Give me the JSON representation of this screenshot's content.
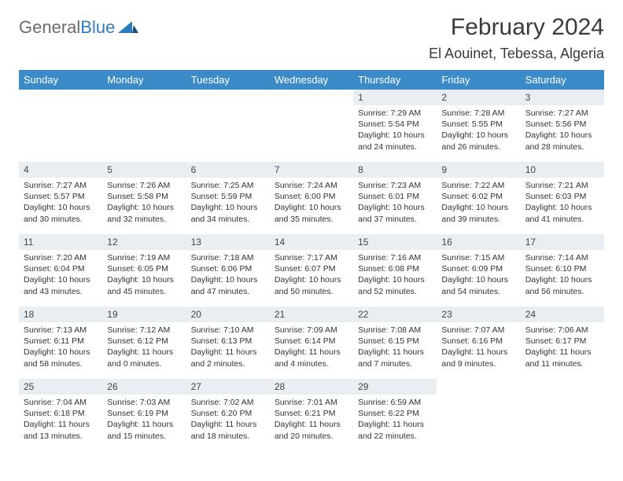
{
  "logo": {
    "general": "General",
    "blue": "Blue"
  },
  "title": "February 2024",
  "location": "El Aouinet, Tebessa, Algeria",
  "colors": {
    "header_bg": "#3b8bc8",
    "header_text": "#ffffff",
    "daybar_bg": "#e9eef2",
    "text": "#333333",
    "logo_gray": "#6b6b6b",
    "logo_blue": "#2f7bbf"
  },
  "days_of_week": [
    "Sunday",
    "Monday",
    "Tuesday",
    "Wednesday",
    "Thursday",
    "Friday",
    "Saturday"
  ],
  "weeks": [
    [
      null,
      null,
      null,
      null,
      {
        "n": "1",
        "sr": "Sunrise: 7:29 AM",
        "ss": "Sunset: 5:54 PM",
        "dl": "Daylight: 10 hours and 24 minutes."
      },
      {
        "n": "2",
        "sr": "Sunrise: 7:28 AM",
        "ss": "Sunset: 5:55 PM",
        "dl": "Daylight: 10 hours and 26 minutes."
      },
      {
        "n": "3",
        "sr": "Sunrise: 7:27 AM",
        "ss": "Sunset: 5:56 PM",
        "dl": "Daylight: 10 hours and 28 minutes."
      }
    ],
    [
      {
        "n": "4",
        "sr": "Sunrise: 7:27 AM",
        "ss": "Sunset: 5:57 PM",
        "dl": "Daylight: 10 hours and 30 minutes."
      },
      {
        "n": "5",
        "sr": "Sunrise: 7:26 AM",
        "ss": "Sunset: 5:58 PM",
        "dl": "Daylight: 10 hours and 32 minutes."
      },
      {
        "n": "6",
        "sr": "Sunrise: 7:25 AM",
        "ss": "Sunset: 5:59 PM",
        "dl": "Daylight: 10 hours and 34 minutes."
      },
      {
        "n": "7",
        "sr": "Sunrise: 7:24 AM",
        "ss": "Sunset: 6:00 PM",
        "dl": "Daylight: 10 hours and 35 minutes."
      },
      {
        "n": "8",
        "sr": "Sunrise: 7:23 AM",
        "ss": "Sunset: 6:01 PM",
        "dl": "Daylight: 10 hours and 37 minutes."
      },
      {
        "n": "9",
        "sr": "Sunrise: 7:22 AM",
        "ss": "Sunset: 6:02 PM",
        "dl": "Daylight: 10 hours and 39 minutes."
      },
      {
        "n": "10",
        "sr": "Sunrise: 7:21 AM",
        "ss": "Sunset: 6:03 PM",
        "dl": "Daylight: 10 hours and 41 minutes."
      }
    ],
    [
      {
        "n": "11",
        "sr": "Sunrise: 7:20 AM",
        "ss": "Sunset: 6:04 PM",
        "dl": "Daylight: 10 hours and 43 minutes."
      },
      {
        "n": "12",
        "sr": "Sunrise: 7:19 AM",
        "ss": "Sunset: 6:05 PM",
        "dl": "Daylight: 10 hours and 45 minutes."
      },
      {
        "n": "13",
        "sr": "Sunrise: 7:18 AM",
        "ss": "Sunset: 6:06 PM",
        "dl": "Daylight: 10 hours and 47 minutes."
      },
      {
        "n": "14",
        "sr": "Sunrise: 7:17 AM",
        "ss": "Sunset: 6:07 PM",
        "dl": "Daylight: 10 hours and 50 minutes."
      },
      {
        "n": "15",
        "sr": "Sunrise: 7:16 AM",
        "ss": "Sunset: 6:08 PM",
        "dl": "Daylight: 10 hours and 52 minutes."
      },
      {
        "n": "16",
        "sr": "Sunrise: 7:15 AM",
        "ss": "Sunset: 6:09 PM",
        "dl": "Daylight: 10 hours and 54 minutes."
      },
      {
        "n": "17",
        "sr": "Sunrise: 7:14 AM",
        "ss": "Sunset: 6:10 PM",
        "dl": "Daylight: 10 hours and 56 minutes."
      }
    ],
    [
      {
        "n": "18",
        "sr": "Sunrise: 7:13 AM",
        "ss": "Sunset: 6:11 PM",
        "dl": "Daylight: 10 hours and 58 minutes."
      },
      {
        "n": "19",
        "sr": "Sunrise: 7:12 AM",
        "ss": "Sunset: 6:12 PM",
        "dl": "Daylight: 11 hours and 0 minutes."
      },
      {
        "n": "20",
        "sr": "Sunrise: 7:10 AM",
        "ss": "Sunset: 6:13 PM",
        "dl": "Daylight: 11 hours and 2 minutes."
      },
      {
        "n": "21",
        "sr": "Sunrise: 7:09 AM",
        "ss": "Sunset: 6:14 PM",
        "dl": "Daylight: 11 hours and 4 minutes."
      },
      {
        "n": "22",
        "sr": "Sunrise: 7:08 AM",
        "ss": "Sunset: 6:15 PM",
        "dl": "Daylight: 11 hours and 7 minutes."
      },
      {
        "n": "23",
        "sr": "Sunrise: 7:07 AM",
        "ss": "Sunset: 6:16 PM",
        "dl": "Daylight: 11 hours and 9 minutes."
      },
      {
        "n": "24",
        "sr": "Sunrise: 7:06 AM",
        "ss": "Sunset: 6:17 PM",
        "dl": "Daylight: 11 hours and 11 minutes."
      }
    ],
    [
      {
        "n": "25",
        "sr": "Sunrise: 7:04 AM",
        "ss": "Sunset: 6:18 PM",
        "dl": "Daylight: 11 hours and 13 minutes."
      },
      {
        "n": "26",
        "sr": "Sunrise: 7:03 AM",
        "ss": "Sunset: 6:19 PM",
        "dl": "Daylight: 11 hours and 15 minutes."
      },
      {
        "n": "27",
        "sr": "Sunrise: 7:02 AM",
        "ss": "Sunset: 6:20 PM",
        "dl": "Daylight: 11 hours and 18 minutes."
      },
      {
        "n": "28",
        "sr": "Sunrise: 7:01 AM",
        "ss": "Sunset: 6:21 PM",
        "dl": "Daylight: 11 hours and 20 minutes."
      },
      {
        "n": "29",
        "sr": "Sunrise: 6:59 AM",
        "ss": "Sunset: 6:22 PM",
        "dl": "Daylight: 11 hours and 22 minutes."
      },
      null,
      null
    ]
  ]
}
